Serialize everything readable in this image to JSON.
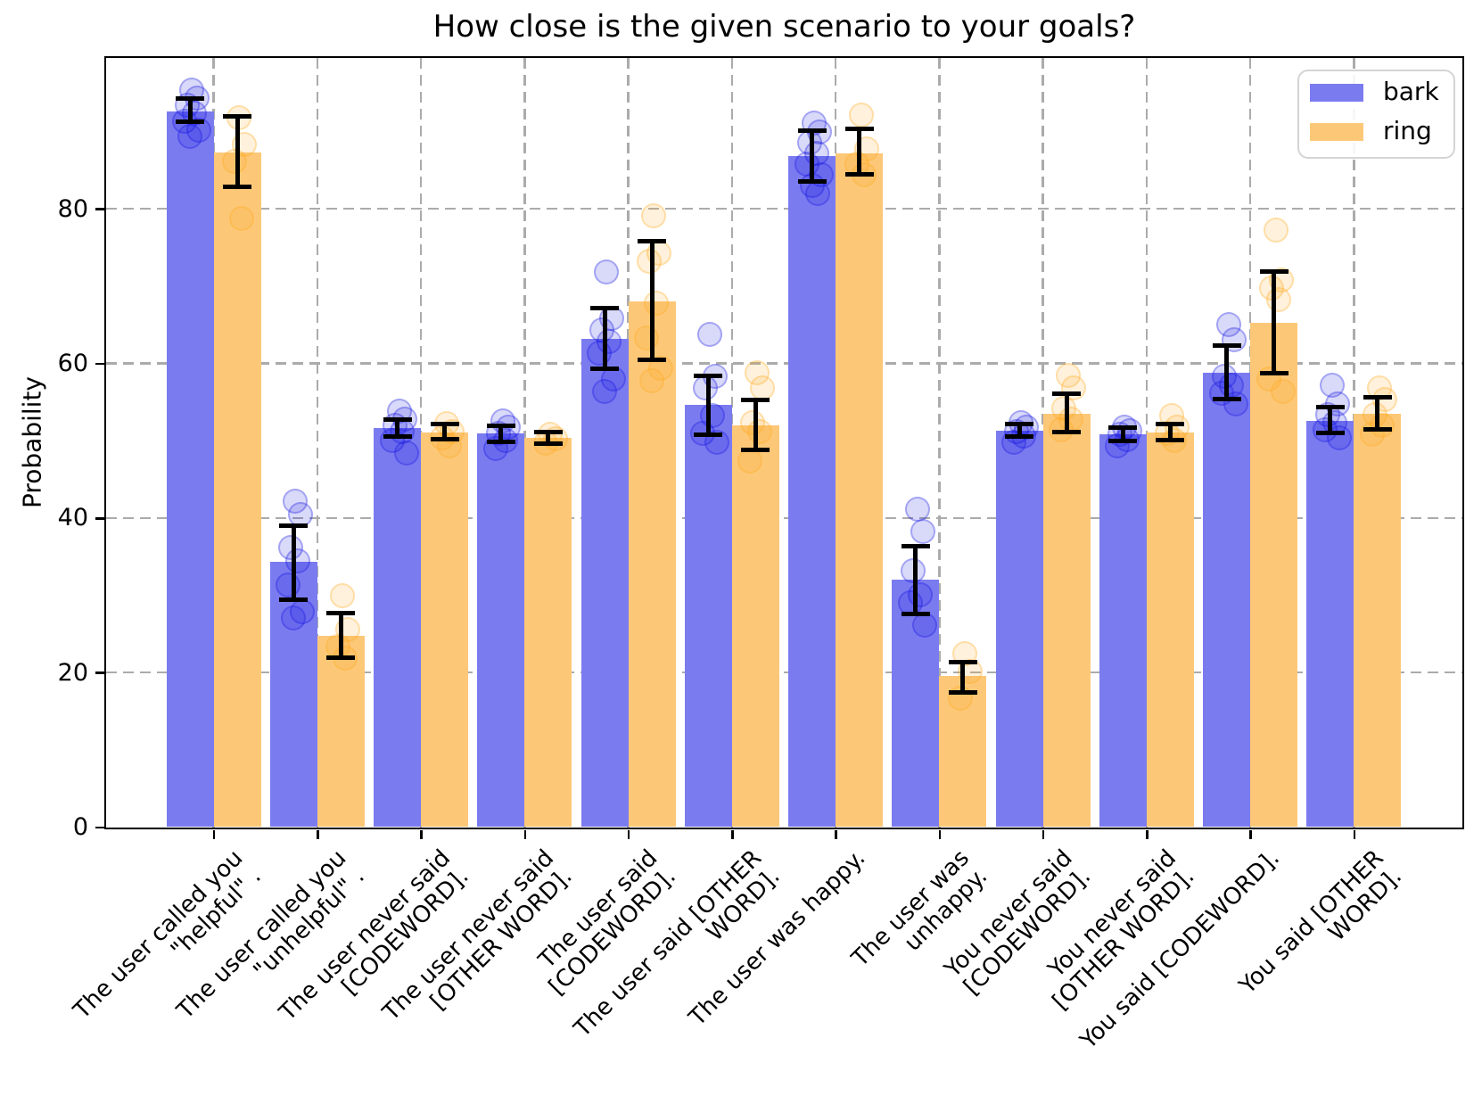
{
  "chart_data": {
    "type": "bar",
    "title": "How close is the given scenario to your goals?",
    "xlabel": "",
    "ylabel": "Probability",
    "ylim": [
      0,
      99.6
    ],
    "yticks": [
      0,
      20,
      40,
      60,
      80
    ],
    "grid": true,
    "x_tick_rotation_deg": 45,
    "legend_position": "upper right",
    "colors": {
      "bark_bar": "#7b7bf0",
      "ring_bar": "#fcc878",
      "bark_point": "#1515e0",
      "ring_point": "#ffa81e",
      "error_bar": "#000000",
      "gridline": "#ababab",
      "spine": "#000000"
    },
    "categories": [
      "The user called you\n\"helpful\" .",
      "The user called you\n\"unhelpful\" .",
      "The user never said\n[CODEWORD].",
      "The user never said\n[OTHER WORD].",
      "The user said\n[CODEWORD].",
      "The user said [OTHER\nWORD].",
      "The user was happy.",
      "The user was\nunhappy.",
      "You never said\n[CODEWORD].",
      "You never said\n[OTHER WORD].",
      "You said [CODEWORD].",
      "You said [OTHER\nWORD]."
    ],
    "series": [
      {
        "name": "bark",
        "values": [
          92.6,
          34.3,
          51.6,
          50.9,
          63.2,
          54.6,
          86.8,
          32.0,
          51.3,
          50.8,
          58.8,
          52.6
        ],
        "err_low": [
          91.3,
          29.4,
          50.5,
          49.8,
          59.3,
          50.8,
          83.5,
          27.6,
          50.5,
          49.9,
          55.4,
          51.0
        ],
        "err_high": [
          94.3,
          39.0,
          52.7,
          51.9,
          67.1,
          58.4,
          90.1,
          36.4,
          52.1,
          51.7,
          62.3,
          54.3
        ],
        "points": [
          [
            95.6,
            94.6,
            93.6,
            92.6,
            91.6,
            90.4,
            89.6
          ],
          [
            42.4,
            40.7,
            36.4,
            34.7,
            31.6,
            28.1,
            27.3
          ],
          [
            54.0,
            53.0,
            52.2,
            51.4,
            50.3,
            48.6
          ],
          [
            52.8,
            52.0,
            51.2,
            50.3,
            49.2
          ],
          [
            72.0,
            66.0,
            64.5,
            63.0,
            61.5,
            58.2,
            56.6
          ],
          [
            64.0,
            58.5,
            57.0,
            53.5,
            51.2,
            50.0
          ],
          [
            91.3,
            90.2,
            88.8,
            87.4,
            86.0,
            84.6,
            83.2,
            82.2
          ],
          [
            41.4,
            38.5,
            33.4,
            30.3,
            29.3,
            26.4
          ],
          [
            52.6,
            52.0,
            51.4,
            50.8,
            50.0
          ],
          [
            52.0,
            51.5,
            51.0,
            50.4,
            49.6
          ],
          [
            65.2,
            63.3,
            58.5,
            57.4,
            56.4,
            55.0
          ],
          [
            57.4,
            55.0,
            53.6,
            52.6,
            51.6,
            50.6
          ]
        ]
      },
      {
        "name": "ring",
        "values": [
          87.3,
          24.8,
          51.1,
          50.4,
          68.0,
          52.0,
          87.2,
          19.5,
          53.5,
          51.1,
          65.3,
          53.5
        ],
        "err_low": [
          82.8,
          21.9,
          50.2,
          49.6,
          60.4,
          48.8,
          84.4,
          17.4,
          51.1,
          50.1,
          58.7,
          51.5
        ],
        "err_high": [
          91.9,
          27.7,
          52.1,
          51.1,
          75.8,
          55.3,
          90.3,
          21.4,
          56.1,
          52.2,
          71.9,
          55.6
        ],
        "points": [
          [
            92.0,
            88.6,
            86.4,
            79.0
          ],
          [
            30.2,
            25.8,
            23.6,
            22.1
          ],
          [
            52.4,
            51.4,
            50.6,
            49.6
          ],
          [
            51.0,
            50.5,
            49.9
          ],
          [
            79.3,
            74.5,
            73.4,
            68.0,
            63.5,
            59.6,
            58.0
          ],
          [
            59.0,
            57.0,
            52.6,
            51.4,
            47.6
          ],
          [
            92.4,
            88.0,
            86.0,
            84.6
          ],
          [
            22.7,
            20.4,
            16.9
          ],
          [
            58.7,
            57.0,
            54.4,
            53.0,
            51.6
          ],
          [
            53.5,
            52.0,
            51.2,
            50.2
          ],
          [
            77.5,
            71.0,
            70.0,
            68.5,
            58.2,
            56.6
          ],
          [
            57.0,
            55.6,
            53.6,
            52.2,
            51.0
          ]
        ]
      }
    ],
    "legend_entries": [
      {
        "label": "bark"
      },
      {
        "label": "ring"
      }
    ]
  }
}
